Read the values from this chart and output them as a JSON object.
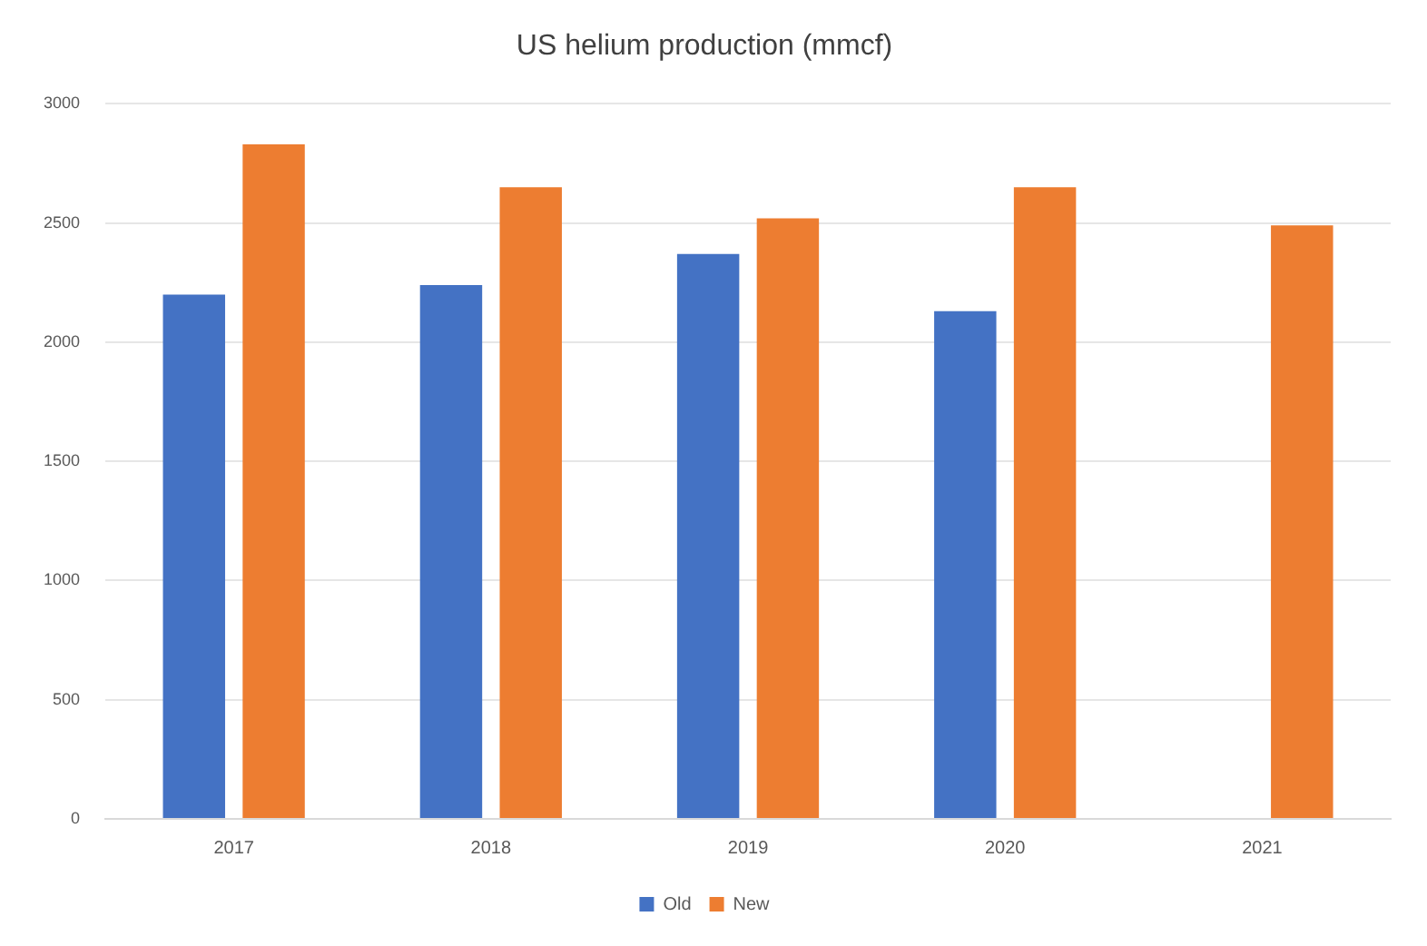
{
  "chart_data": {
    "type": "bar",
    "title": "US helium production (mmcf)",
    "categories": [
      "2017",
      "2018",
      "2019",
      "2020",
      "2021"
    ],
    "series": [
      {
        "name": "Old",
        "color": "#4472c4",
        "values": [
          2200,
          2240,
          2370,
          2130,
          null
        ]
      },
      {
        "name": "New",
        "color": "#ed7d31",
        "values": [
          2830,
          2650,
          2520,
          2650,
          2490
        ]
      }
    ],
    "ylim": [
      0,
      3000
    ],
    "yticks": [
      0,
      500,
      1000,
      1500,
      2000,
      2500,
      3000
    ],
    "grid": "y",
    "legend": "bottom"
  }
}
